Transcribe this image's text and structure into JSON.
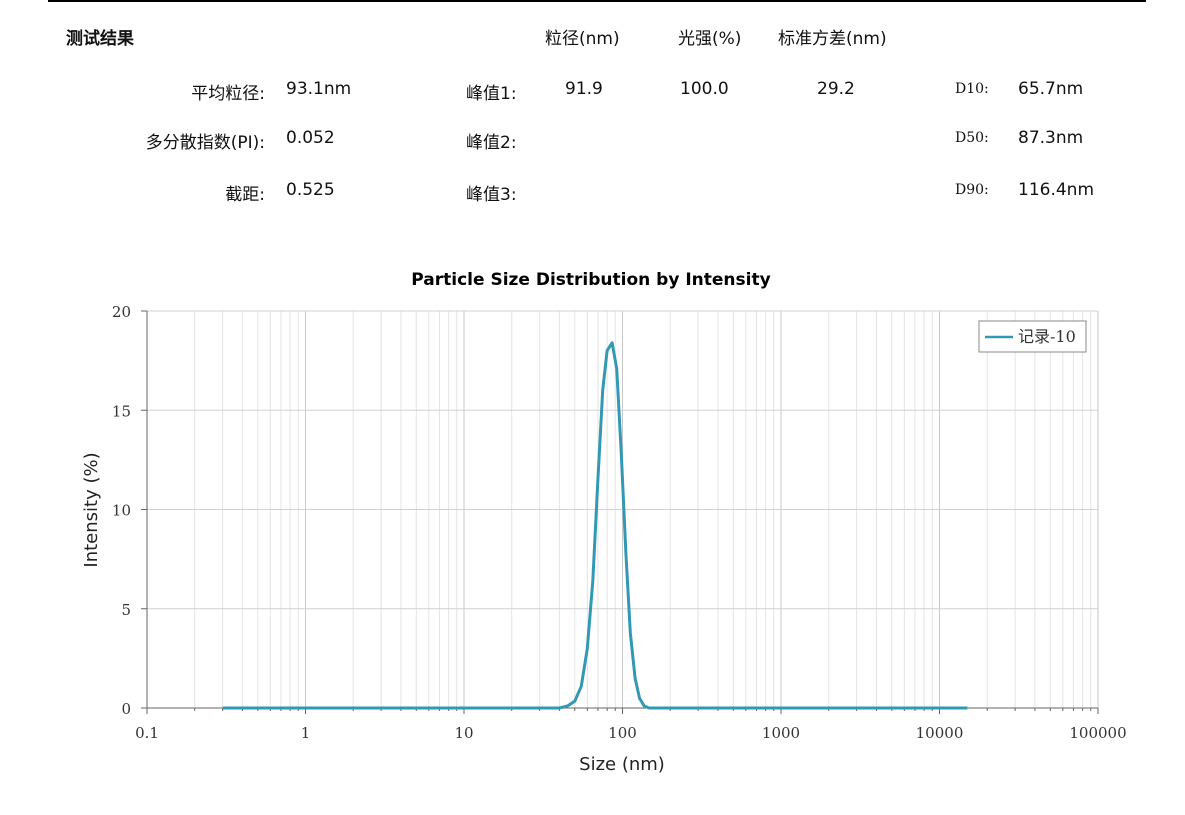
{
  "results": {
    "section_title": "测试结果",
    "headers": {
      "size": "粒径(nm)",
      "intensity": "光强(%)",
      "std": "标准方差(nm)"
    },
    "summary": [
      {
        "label": "平均粒径:",
        "value": "93.1nm"
      },
      {
        "label": "多分散指数(PI):",
        "value": "0.052"
      },
      {
        "label": "截距:",
        "value": "0.525"
      }
    ],
    "peaks": [
      {
        "label": "峰值1:",
        "size": "91.9",
        "intensity": "100.0",
        "std": "29.2"
      },
      {
        "label": "峰值2:",
        "size": "",
        "intensity": "",
        "std": ""
      },
      {
        "label": "峰值3:",
        "size": "",
        "intensity": "",
        "std": ""
      }
    ],
    "percentiles": [
      {
        "label": "D10:",
        "value": "65.7nm"
      },
      {
        "label": "D50:",
        "value": "87.3nm"
      },
      {
        "label": "D90:",
        "value": "116.4nm"
      }
    ]
  },
  "chart_data": {
    "type": "line",
    "title": "Particle Size Distribution by Intensity",
    "xlabel": "Size (nm)",
    "ylabel": "Intensity (%)",
    "x_scale": "log",
    "xlim": [
      0.1,
      100000
    ],
    "ylim": [
      0,
      20
    ],
    "x_ticks": [
      "0.1",
      "1",
      "10",
      "100",
      "1000",
      "10000",
      "100000"
    ],
    "y_ticks": [
      "0",
      "5",
      "10",
      "15",
      "20"
    ],
    "grid": true,
    "legend_position": "top-right",
    "line_color": "#3399b3",
    "series": [
      {
        "name": "记录-10",
        "x": [
          0.3,
          1,
          10,
          40,
          45,
          50,
          55,
          60,
          65,
          70,
          75,
          80,
          86,
          91.9,
          98,
          105,
          112,
          120,
          128,
          137,
          147,
          158,
          170,
          182,
          200,
          1000,
          10000,
          15000
        ],
        "y": [
          0,
          0,
          0,
          0,
          0.1,
          0.35,
          1.1,
          3.0,
          6.4,
          11.5,
          16.0,
          18.0,
          18.4,
          17.1,
          13.0,
          7.8,
          3.8,
          1.5,
          0.5,
          0.1,
          0,
          0,
          0,
          0,
          0,
          0,
          0,
          0
        ]
      }
    ]
  }
}
